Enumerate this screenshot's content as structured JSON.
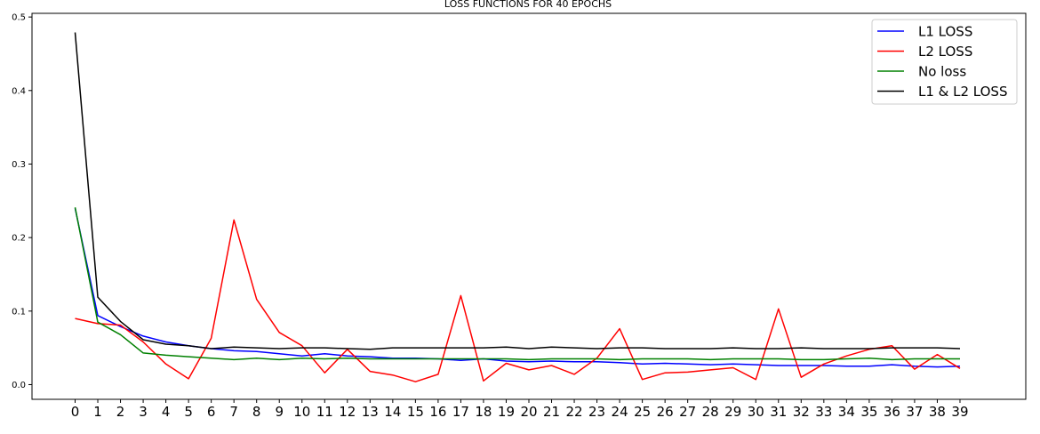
{
  "chart_data": {
    "type": "line",
    "title": "LOSS FUNCTIONS FOR 40 EPOCHS",
    "xlabel": "",
    "ylabel": "",
    "x": [
      0,
      1,
      2,
      3,
      4,
      5,
      6,
      7,
      8,
      9,
      10,
      11,
      12,
      13,
      14,
      15,
      16,
      17,
      18,
      19,
      20,
      21,
      22,
      23,
      24,
      25,
      26,
      27,
      28,
      29,
      30,
      31,
      32,
      33,
      34,
      35,
      36,
      37,
      38,
      39
    ],
    "xlim": [
      -1.9,
      41.9
    ],
    "ylim": [
      -0.02,
      0.505
    ],
    "yticks": [
      0.0,
      0.1,
      0.2,
      0.3,
      0.4,
      0.5
    ],
    "ytick_labels": [
      "0.0",
      "0.1",
      "0.2",
      "0.3",
      "0.4",
      "0.5"
    ],
    "grid": false,
    "legend_position": "top-right",
    "series": [
      {
        "name": "L1 LOSS",
        "color": "#0000ff",
        "values": [
          0.24,
          0.094,
          0.079,
          0.066,
          0.058,
          0.053,
          0.049,
          0.046,
          0.045,
          0.042,
          0.039,
          0.042,
          0.039,
          0.038,
          0.036,
          0.036,
          0.035,
          0.033,
          0.035,
          0.032,
          0.031,
          0.032,
          0.031,
          0.031,
          0.03,
          0.028,
          0.029,
          0.028,
          0.027,
          0.028,
          0.027,
          0.026,
          0.026,
          0.026,
          0.025,
          0.025,
          0.027,
          0.025,
          0.024,
          0.025
        ]
      },
      {
        "name": "L2 LOSS",
        "color": "#ff0000",
        "values": [
          0.09,
          0.083,
          0.081,
          0.058,
          0.028,
          0.008,
          0.063,
          0.224,
          0.116,
          0.071,
          0.053,
          0.016,
          0.048,
          0.018,
          0.013,
          0.004,
          0.014,
          0.121,
          0.005,
          0.029,
          0.02,
          0.026,
          0.014,
          0.036,
          0.076,
          0.007,
          0.016,
          0.017,
          0.02,
          0.023,
          0.007,
          0.103,
          0.01,
          0.028,
          0.039,
          0.048,
          0.053,
          0.021,
          0.041,
          0.022
        ]
      },
      {
        "name": "No loss",
        "color": "#008000",
        "values": [
          0.241,
          0.085,
          0.068,
          0.043,
          0.04,
          0.038,
          0.036,
          0.034,
          0.036,
          0.034,
          0.036,
          0.035,
          0.036,
          0.035,
          0.035,
          0.035,
          0.035,
          0.035,
          0.035,
          0.035,
          0.034,
          0.035,
          0.035,
          0.035,
          0.034,
          0.035,
          0.035,
          0.035,
          0.034,
          0.035,
          0.035,
          0.035,
          0.034,
          0.034,
          0.035,
          0.036,
          0.034,
          0.035,
          0.035,
          0.035
        ]
      },
      {
        "name": "L1 & L2 LOSS",
        "color": "#000000",
        "values": [
          0.479,
          0.119,
          0.086,
          0.061,
          0.055,
          0.053,
          0.049,
          0.051,
          0.05,
          0.049,
          0.05,
          0.05,
          0.049,
          0.048,
          0.05,
          0.05,
          0.05,
          0.05,
          0.05,
          0.051,
          0.049,
          0.051,
          0.05,
          0.049,
          0.05,
          0.05,
          0.049,
          0.049,
          0.049,
          0.05,
          0.049,
          0.049,
          0.05,
          0.049,
          0.049,
          0.049,
          0.05,
          0.05,
          0.05,
          0.049
        ]
      }
    ]
  }
}
